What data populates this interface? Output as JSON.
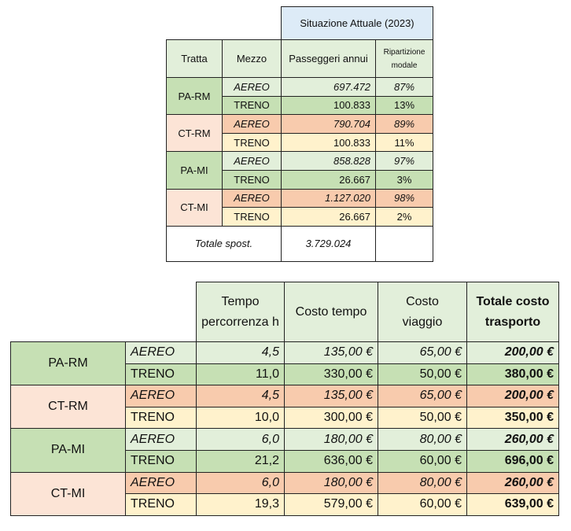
{
  "table1": {
    "group_header": "Situazione Attuale (2023)",
    "headers": {
      "tratta": "Tratta",
      "mezzo": "Mezzo",
      "passeggeri": "Passeggeri annui",
      "ripartizione": "Ripartizione modale"
    },
    "routes": [
      {
        "tratta": "PA-RM",
        "rows": [
          {
            "mezzo": "AEREO",
            "passeggeri": "697.472",
            "ripartizione": "87%"
          },
          {
            "mezzo": "TRENO",
            "passeggeri": "100.833",
            "ripartizione": "13%"
          }
        ]
      },
      {
        "tratta": "CT-RM",
        "rows": [
          {
            "mezzo": "AEREO",
            "passeggeri": "790.704",
            "ripartizione": "89%"
          },
          {
            "mezzo": "TRENO",
            "passeggeri": "100.833",
            "ripartizione": "11%"
          }
        ]
      },
      {
        "tratta": "PA-MI",
        "rows": [
          {
            "mezzo": "AEREO",
            "passeggeri": "858.828",
            "ripartizione": "97%"
          },
          {
            "mezzo": "TRENO",
            "passeggeri": "26.667",
            "ripartizione": "3%"
          }
        ]
      },
      {
        "tratta": "CT-MI",
        "rows": [
          {
            "mezzo": "AEREO",
            "passeggeri": "1.127.020",
            "ripartizione": "98%"
          },
          {
            "mezzo": "TRENO",
            "passeggeri": "26.667",
            "ripartizione": "2%"
          }
        ]
      }
    ],
    "total_label": "Totale spost.",
    "total_value": "3.729.024"
  },
  "table2": {
    "headers": {
      "tempo": "Tempo percorrenza h",
      "costo_tempo": "Costo tempo",
      "costo_viaggio": "Costo viaggio",
      "totale": "Totale costo trasporto"
    },
    "routes": [
      {
        "tratta": "PA-RM",
        "rows": [
          {
            "mezzo": "AEREO",
            "tempo": "4,5",
            "costo_tempo": "135,00 €",
            "costo_viaggio": "65,00 €",
            "totale": "200,00 €"
          },
          {
            "mezzo": "TRENO",
            "tempo": "11,0",
            "costo_tempo": "330,00 €",
            "costo_viaggio": "50,00 €",
            "totale": "380,00 €"
          }
        ]
      },
      {
        "tratta": "CT-RM",
        "rows": [
          {
            "mezzo": "AEREO",
            "tempo": "4,5",
            "costo_tempo": "135,00 €",
            "costo_viaggio": "65,00 €",
            "totale": "200,00 €"
          },
          {
            "mezzo": "TRENO",
            "tempo": "10,0",
            "costo_tempo": "300,00 €",
            "costo_viaggio": "50,00 €",
            "totale": "350,00 €"
          }
        ]
      },
      {
        "tratta": "PA-MI",
        "rows": [
          {
            "mezzo": "AEREO",
            "tempo": "6,0",
            "costo_tempo": "180,00 €",
            "costo_viaggio": "80,00 €",
            "totale": "260,00 €"
          },
          {
            "mezzo": "TRENO",
            "tempo": "21,2",
            "costo_tempo": "636,00 €",
            "costo_viaggio": "60,00 €",
            "totale": "696,00 €"
          }
        ]
      },
      {
        "tratta": "CT-MI",
        "rows": [
          {
            "mezzo": "AEREO",
            "tempo": "6,0",
            "costo_tempo": "180,00 €",
            "costo_viaggio": "80,00 €",
            "totale": "260,00 €"
          },
          {
            "mezzo": "TRENO",
            "tempo": "19,3",
            "costo_tempo": "579,00 €",
            "costo_viaggio": "60,00 €",
            "totale": "639,00 €"
          }
        ]
      }
    ]
  },
  "colors": {
    "green_light": "#e2efda",
    "green_mid": "#c6e0b4",
    "peach": "#fce4d6",
    "orange": "#f8cbad",
    "cream": "#fff2cc",
    "blue": "#ddebf7"
  }
}
